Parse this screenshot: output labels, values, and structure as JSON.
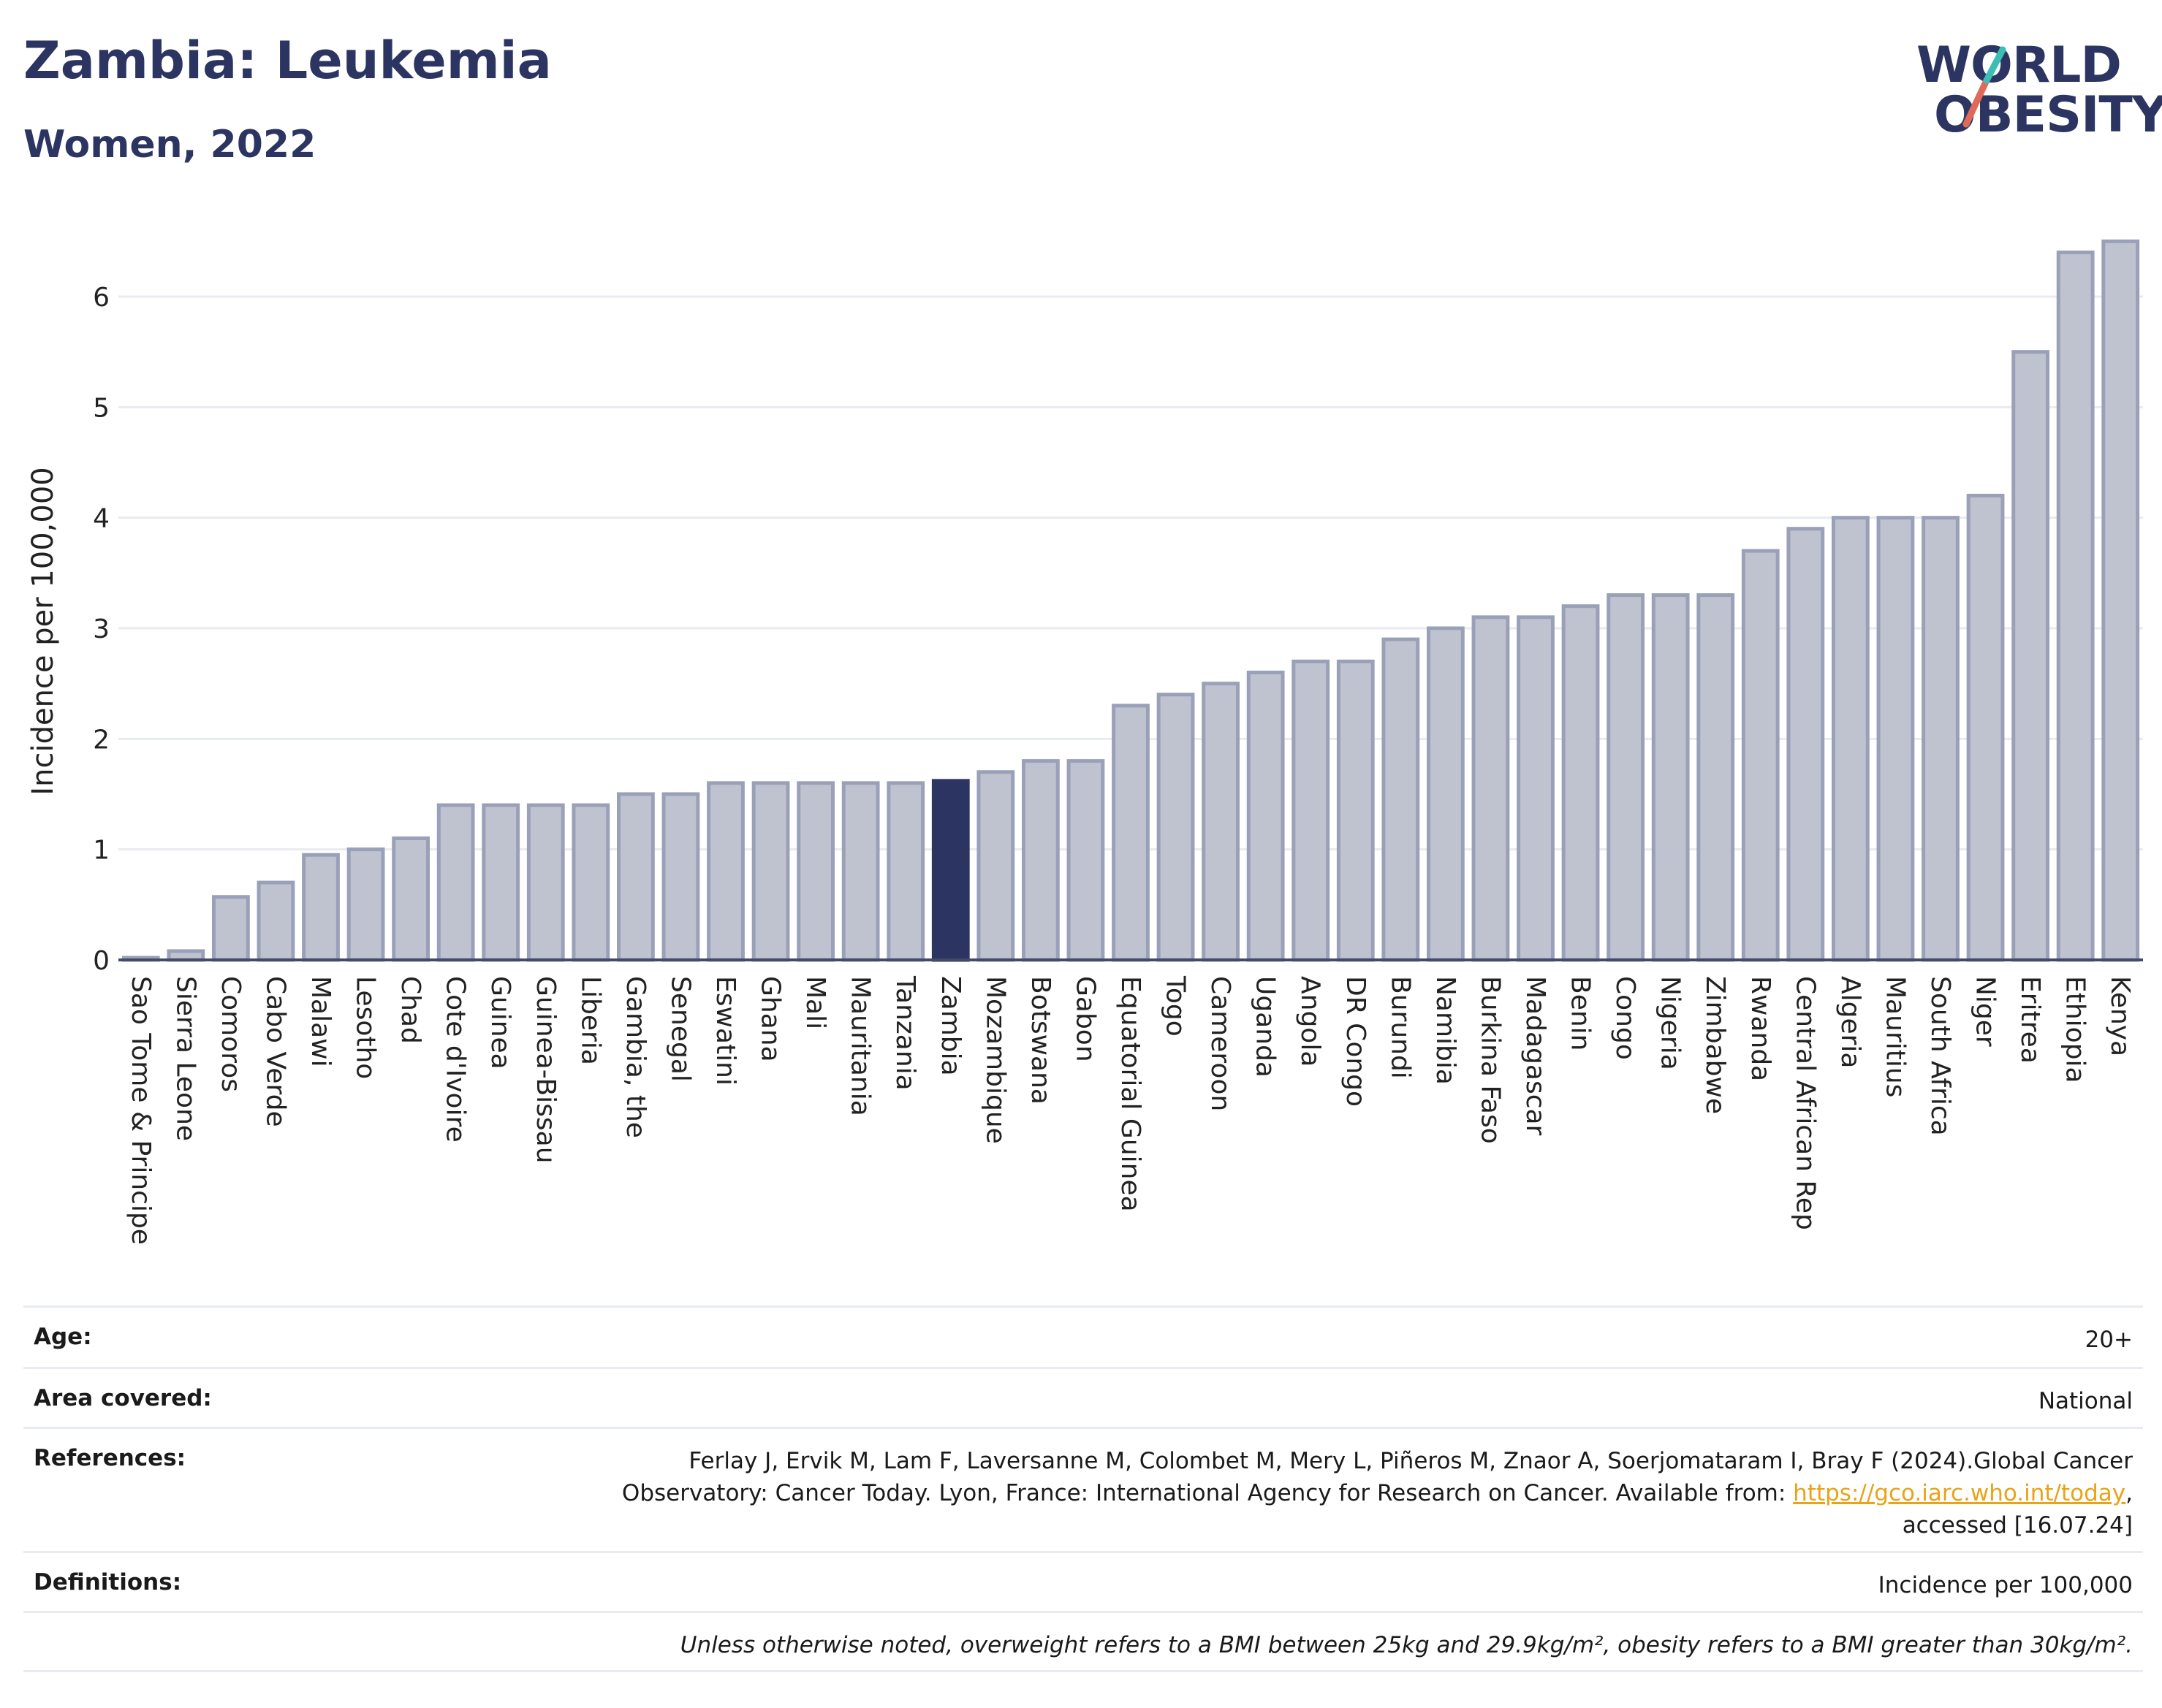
{
  "header": {
    "title": "Zambia: Leukemia",
    "subtitle": "Women, 2022"
  },
  "logo": {
    "line1": "WORLD",
    "line2": "OBESITY"
  },
  "chart_data": {
    "type": "bar",
    "ylabel": "Incidence per 100,000",
    "ylim": [
      0,
      6.6
    ],
    "yticks": [
      0,
      1,
      2,
      3,
      4,
      5,
      6
    ],
    "grid": true,
    "highlight": "Zambia",
    "colors": {
      "bar": "#bfc3d0",
      "bar_border": "#9aa0b8",
      "highlight": "#2c3561",
      "grid": "#e8ebf0"
    },
    "categories": [
      "Sao Tome & Principe",
      "Sierra Leone",
      "Comoros",
      "Cabo Verde",
      "Malawi",
      "Lesotho",
      "Chad",
      "Cote d'Ivoire",
      "Guinea",
      "Guinea-Bissau",
      "Liberia",
      "Gambia, the",
      "Senegal",
      "Eswatini",
      "Ghana",
      "Mali",
      "Mauritania",
      "Tanzania",
      "Zambia",
      "Mozambique",
      "Botswana",
      "Gabon",
      "Equatorial Guinea",
      "Togo",
      "Cameroon",
      "Uganda",
      "Angola",
      "DR Congo",
      "Burundi",
      "Namibia",
      "Burkina Faso",
      "Madagascar",
      "Benin",
      "Congo",
      "Nigeria",
      "Zimbabwe",
      "Rwanda",
      "Central African Rep",
      "Algeria",
      "Mauritius",
      "South Africa",
      "Niger",
      "Eritrea",
      "Ethiopia",
      "Kenya"
    ],
    "values": [
      0.02,
      0.08,
      0.57,
      0.7,
      0.95,
      1.0,
      1.1,
      1.4,
      1.4,
      1.4,
      1.4,
      1.5,
      1.5,
      1.6,
      1.6,
      1.6,
      1.6,
      1.6,
      1.62,
      1.7,
      1.8,
      1.8,
      2.3,
      2.4,
      2.5,
      2.6,
      2.7,
      2.7,
      2.9,
      3.0,
      3.1,
      3.1,
      3.2,
      3.3,
      3.3,
      3.3,
      3.7,
      3.9,
      4.0,
      4.0,
      4.0,
      4.2,
      5.5,
      6.4,
      6.5
    ]
  },
  "info": {
    "age_label": "Age:",
    "age_value": "20+",
    "area_label": "Area covered:",
    "area_value": "National",
    "references_label": "References:",
    "references_text_1": "Ferlay J, Ervik M, Lam F, Laversanne M, Colombet M, Mery L, Piñeros M, Znaor A, Soerjomataram I, Bray F (2024).Global Cancer",
    "references_text_2": "Observatory: Cancer Today. Lyon, France: International Agency for Research on Cancer. Available from: ",
    "references_link": "https://gco.iarc.who.int/today",
    "references_text_3": ",",
    "references_text_4": "accessed [16.07.24]",
    "definitions_label": "Definitions:",
    "definitions_value": "Incidence per 100,000",
    "note": "Unless otherwise noted, overweight refers to a BMI between 25kg and 29.9kg/m², obesity refers to a BMI greater than 30kg/m²."
  }
}
